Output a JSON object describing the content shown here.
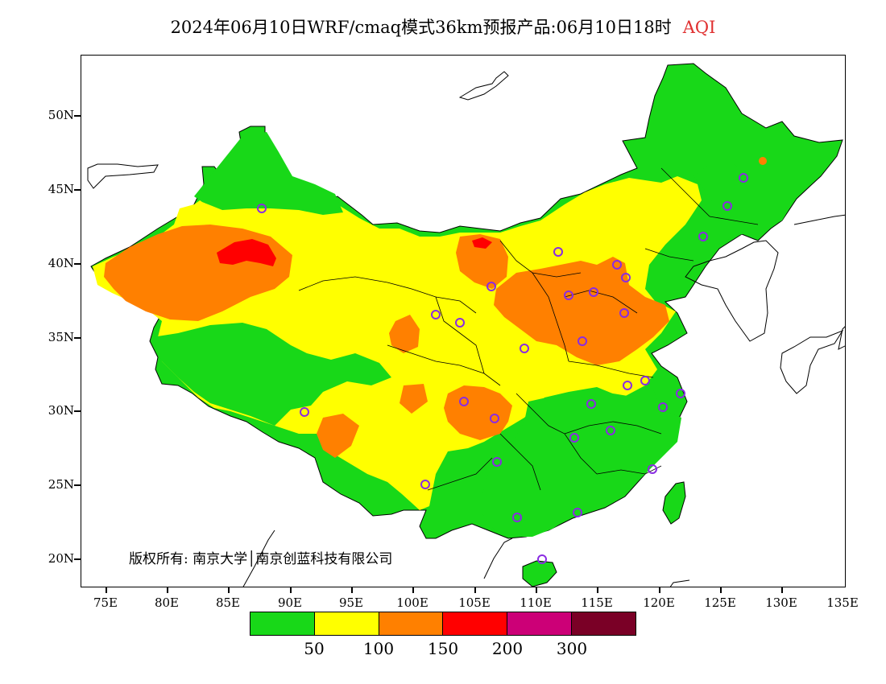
{
  "title": {
    "text": "2024年06月10日WRF/cmaq模式36km预报产品:06月10日18时",
    "variable": "AQI",
    "variable_color": "#e03030"
  },
  "axes": {
    "lat_labels": [
      "50N",
      "45N",
      "40N",
      "35N",
      "30N",
      "25N",
      "20N"
    ],
    "lon_labels": [
      "75E",
      "80E",
      "85E",
      "90E",
      "95E",
      "100E",
      "105E",
      "110E",
      "115E",
      "120E",
      "125E",
      "130E",
      "135E"
    ]
  },
  "copyright": "版权所有: 南京大学│南京创蓝科技有限公司",
  "legend": {
    "colors": [
      "#18d818",
      "#ffff00",
      "#ff8000",
      "#ff0000",
      "#cc0077",
      "#7a0026"
    ],
    "labels": [
      "50",
      "100",
      "150",
      "200",
      "300"
    ]
  },
  "map": {
    "colors": {
      "good": "#18d818",
      "moderate": "#ffff00",
      "usg": "#ff8000",
      "unhealthy": "#ff0000",
      "station": "#8a2be2",
      "border": "#000000"
    },
    "stations_count": 31
  }
}
